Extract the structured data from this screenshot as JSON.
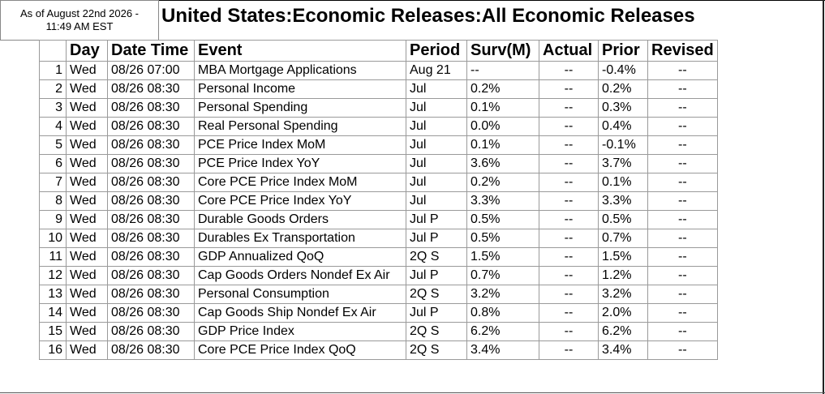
{
  "as_of": {
    "line1": "As of August 22nd 2026 -",
    "line2": "11:49 AM EST"
  },
  "title": "United States:Economic Releases:All Economic Releases",
  "table": {
    "headers": {
      "day": "Day",
      "date_time": "Date Time",
      "event": "Event",
      "period": "Period",
      "surv": "Surv(M)",
      "actual": "Actual",
      "prior": "Prior",
      "revised": "Revised"
    },
    "rows": [
      {
        "idx": "1",
        "day": "Wed",
        "date_time": "08/26 07:00",
        "event": "MBA Mortgage Applications",
        "period": "Aug 21",
        "surv": "--",
        "actual": "--",
        "prior": "-0.4%",
        "revised": "--"
      },
      {
        "idx": "2",
        "day": "Wed",
        "date_time": "08/26 08:30",
        "event": "Personal Income",
        "period": "Jul",
        "surv": "0.2%",
        "actual": "--",
        "prior": "0.2%",
        "revised": "--"
      },
      {
        "idx": "3",
        "day": "Wed",
        "date_time": "08/26 08:30",
        "event": "Personal Spending",
        "period": "Jul",
        "surv": "0.1%",
        "actual": "--",
        "prior": "0.3%",
        "revised": "--"
      },
      {
        "idx": "4",
        "day": "Wed",
        "date_time": "08/26 08:30",
        "event": "Real Personal Spending",
        "period": "Jul",
        "surv": "0.0%",
        "actual": "--",
        "prior": "0.4%",
        "revised": "--"
      },
      {
        "idx": "5",
        "day": "Wed",
        "date_time": "08/26 08:30",
        "event": "PCE Price Index MoM",
        "period": "Jul",
        "surv": "0.1%",
        "actual": "--",
        "prior": "-0.1%",
        "revised": "--"
      },
      {
        "idx": "6",
        "day": "Wed",
        "date_time": "08/26 08:30",
        "event": "PCE Price Index YoY",
        "period": "Jul",
        "surv": "3.6%",
        "actual": "--",
        "prior": "3.7%",
        "revised": "--"
      },
      {
        "idx": "7",
        "day": "Wed",
        "date_time": "08/26 08:30",
        "event": "Core PCE Price Index MoM",
        "period": "Jul",
        "surv": "0.2%",
        "actual": "--",
        "prior": "0.1%",
        "revised": "--"
      },
      {
        "idx": "8",
        "day": "Wed",
        "date_time": "08/26 08:30",
        "event": "Core PCE Price Index YoY",
        "period": "Jul",
        "surv": "3.3%",
        "actual": "--",
        "prior": "3.3%",
        "revised": "--"
      },
      {
        "idx": "9",
        "day": "Wed",
        "date_time": "08/26 08:30",
        "event": "Durable Goods Orders",
        "period": "Jul P",
        "surv": "0.5%",
        "actual": "--",
        "prior": "0.5%",
        "revised": "--"
      },
      {
        "idx": "10",
        "day": "Wed",
        "date_time": "08/26 08:30",
        "event": "Durables Ex Transportation",
        "period": "Jul P",
        "surv": "0.5%",
        "actual": "--",
        "prior": "0.7%",
        "revised": "--"
      },
      {
        "idx": "11",
        "day": "Wed",
        "date_time": "08/26 08:30",
        "event": "GDP Annualized QoQ",
        "period": "2Q S",
        "surv": "1.5%",
        "actual": "--",
        "prior": "1.5%",
        "revised": "--"
      },
      {
        "idx": "12",
        "day": "Wed",
        "date_time": "08/26 08:30",
        "event": "Cap Goods Orders Nondef Ex Air",
        "period": "Jul P",
        "surv": "0.7%",
        "actual": "--",
        "prior": "1.2%",
        "revised": "--"
      },
      {
        "idx": "13",
        "day": "Wed",
        "date_time": "08/26 08:30",
        "event": "Personal Consumption",
        "period": "2Q S",
        "surv": "3.2%",
        "actual": "--",
        "prior": "3.2%",
        "revised": "--"
      },
      {
        "idx": "14",
        "day": "Wed",
        "date_time": "08/26 08:30",
        "event": "Cap Goods Ship Nondef Ex Air",
        "period": "Jul P",
        "surv": "0.8%",
        "actual": "--",
        "prior": "2.0%",
        "revised": "--"
      },
      {
        "idx": "15",
        "day": "Wed",
        "date_time": "08/26 08:30",
        "event": "GDP Price Index",
        "period": "2Q S",
        "surv": "6.2%",
        "actual": "--",
        "prior": "6.2%",
        "revised": "--"
      },
      {
        "idx": "16",
        "day": "Wed",
        "date_time": "08/26 08:30",
        "event": "Core PCE Price Index QoQ",
        "period": "2Q S",
        "surv": "3.4%",
        "actual": "--",
        "prior": "3.4%",
        "revised": "--"
      }
    ]
  }
}
